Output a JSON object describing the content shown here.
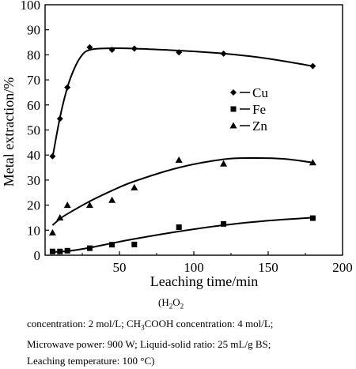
{
  "chart_data": {
    "type": "scatter",
    "title": "",
    "xlabel": "Leaching time/min",
    "ylabel": "Metal extraction/%",
    "xlim": [
      0,
      200
    ],
    "ylim": [
      0,
      100
    ],
    "xticks": [
      "50",
      "100",
      "150",
      "200"
    ],
    "yticks": [
      "0",
      "10",
      "20",
      "30",
      "40",
      "50",
      "60",
      "70",
      "80",
      "90",
      "100"
    ],
    "legend_position": "center-right",
    "series": [
      {
        "name": "Cu",
        "marker": "diamond",
        "points": [
          [
            5,
            39.5
          ],
          [
            10,
            54.5
          ],
          [
            15,
            67
          ],
          [
            30,
            83
          ],
          [
            45,
            82
          ],
          [
            60,
            82.5
          ],
          [
            90,
            81
          ],
          [
            120,
            80.5
          ],
          [
            180,
            75.5
          ]
        ],
        "fit": [
          [
            5,
            39
          ],
          [
            10,
            55
          ],
          [
            15,
            67
          ],
          [
            20,
            75
          ],
          [
            25,
            80
          ],
          [
            30,
            82
          ],
          [
            40,
            82.6
          ],
          [
            60,
            82.5
          ],
          [
            90,
            81.7
          ],
          [
            120,
            80.5
          ],
          [
            150,
            78.5
          ],
          [
            180,
            75.5
          ]
        ]
      },
      {
        "name": "Fe",
        "marker": "square",
        "points": [
          [
            5,
            1.5
          ],
          [
            10,
            1.5
          ],
          [
            15,
            1.8
          ],
          [
            30,
            2.8
          ],
          [
            45,
            4.2
          ],
          [
            60,
            4.3
          ],
          [
            90,
            11.2
          ],
          [
            120,
            12.5
          ],
          [
            180,
            14.8
          ]
        ],
        "fit": [
          [
            5,
            1.3
          ],
          [
            15,
            1.6
          ],
          [
            30,
            3.0
          ],
          [
            45,
            4.8
          ],
          [
            60,
            6.5
          ],
          [
            90,
            9.5
          ],
          [
            120,
            12
          ],
          [
            150,
            13.8
          ],
          [
            180,
            15
          ]
        ]
      },
      {
        "name": "Zn",
        "marker": "triangle",
        "points": [
          [
            5,
            9
          ],
          [
            10,
            15
          ],
          [
            15,
            20
          ],
          [
            30,
            20
          ],
          [
            45,
            22
          ],
          [
            60,
            27
          ],
          [
            90,
            38
          ],
          [
            120,
            36.5
          ],
          [
            180,
            37
          ]
        ],
        "fit": [
          [
            5,
            12
          ],
          [
            10,
            14.5
          ],
          [
            15,
            16.5
          ],
          [
            30,
            21.5
          ],
          [
            45,
            25.8
          ],
          [
            60,
            29.5
          ],
          [
            90,
            35
          ],
          [
            120,
            38.3
          ],
          [
            140,
            38.8
          ],
          [
            160,
            38.5
          ],
          [
            180,
            37
          ]
        ]
      }
    ]
  },
  "caption": {
    "line1_open": "(H",
    "line1_sub1": "2",
    "line1_o": "O",
    "line1_sub2": "2",
    "line2_a": "concentration: 2 mol/L; CH",
    "line2_sub": "3",
    "line2_b": "COOH concentration: 4 mol/L;",
    "line3": "Microwave power: 900 W; Liquid-solid ratio: 25 mL/g BS;",
    "line4": "Leaching temperature: 100 °C)"
  },
  "colors": {
    "ink": "#000000",
    "background": "#ffffff"
  }
}
